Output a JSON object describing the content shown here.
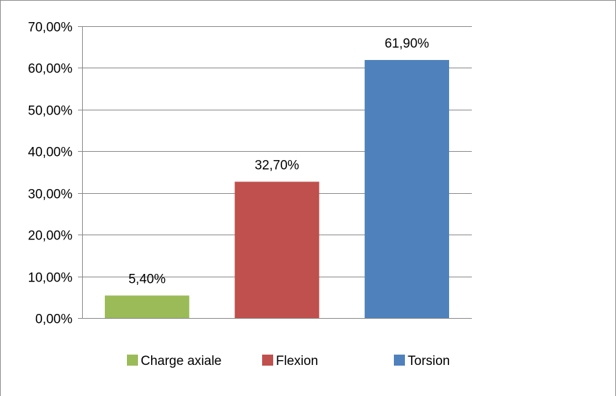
{
  "chart_data": {
    "type": "bar",
    "categories": [
      "Charge axiale",
      "Flexion",
      "Torsion"
    ],
    "values": [
      5.4,
      32.7,
      61.9
    ],
    "data_labels": [
      "5,40%",
      "32,70%",
      "61,90%"
    ],
    "colors": [
      "#9bbb59",
      "#c0504d",
      "#4f81bd"
    ],
    "ylim": [
      0,
      70
    ],
    "yticks": [
      0,
      10,
      20,
      30,
      40,
      50,
      60,
      70
    ],
    "ytick_labels": [
      "0,00%",
      "10,00%",
      "20,00%",
      "30,00%",
      "40,00%",
      "50,00%",
      "60,00%",
      "70,00%"
    ],
    "grid": true,
    "legend": {
      "position": "bottom",
      "entries": [
        "Charge axiale",
        "Flexion",
        "Torsion"
      ]
    },
    "title": "",
    "xlabel": "",
    "ylabel": ""
  }
}
